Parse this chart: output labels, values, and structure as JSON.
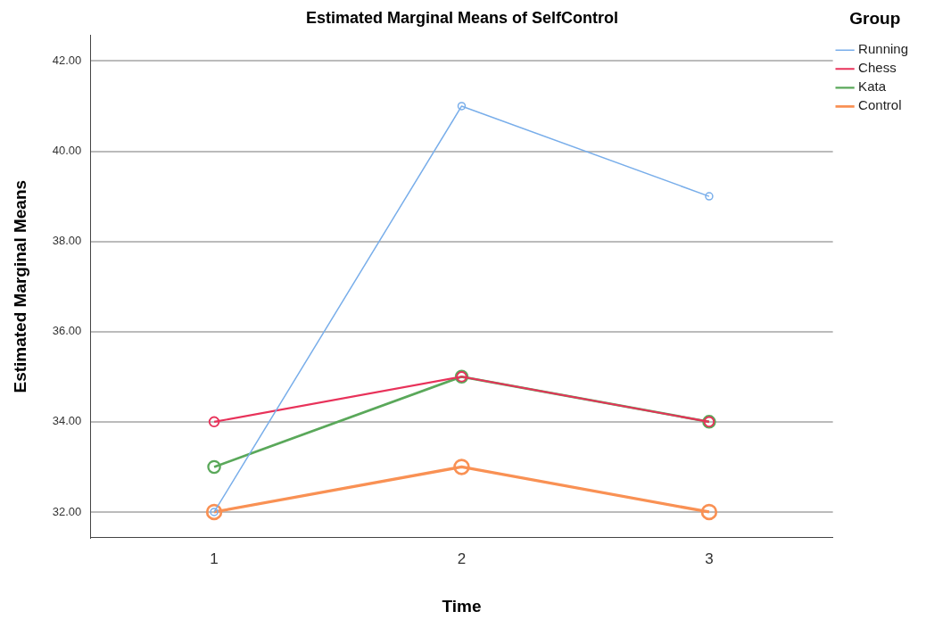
{
  "chart_data": {
    "type": "line",
    "title": "Estimated Marginal Means of SelfControl",
    "xlabel": "Time",
    "ylabel": "Estimated Marginal Means",
    "legend_title": "Group",
    "categories": [
      "1",
      "2",
      "3"
    ],
    "series": [
      {
        "name": "Running",
        "color": "#79aeea",
        "values": [
          32,
          41,
          39
        ]
      },
      {
        "name": "Chess",
        "color": "#e8325a",
        "values": [
          34,
          35,
          34
        ]
      },
      {
        "name": "Kata",
        "color": "#5aa85a",
        "values": [
          33,
          35,
          34
        ]
      },
      {
        "name": "Control",
        "color": "#f99154",
        "values": [
          32,
          33,
          32
        ]
      }
    ],
    "ylim": [
      31.43,
      42.57
    ],
    "yticks": [
      {
        "value": 32,
        "label": "32.00"
      },
      {
        "value": 34,
        "label": "34.00"
      },
      {
        "value": 36,
        "label": "36.00"
      },
      {
        "value": 38,
        "label": "38.00"
      },
      {
        "value": 40,
        "label": "40.00"
      },
      {
        "value": 42,
        "label": "42.00"
      }
    ],
    "grid": "y",
    "legend": "right",
    "marker": "circle",
    "line_style": "solid"
  }
}
